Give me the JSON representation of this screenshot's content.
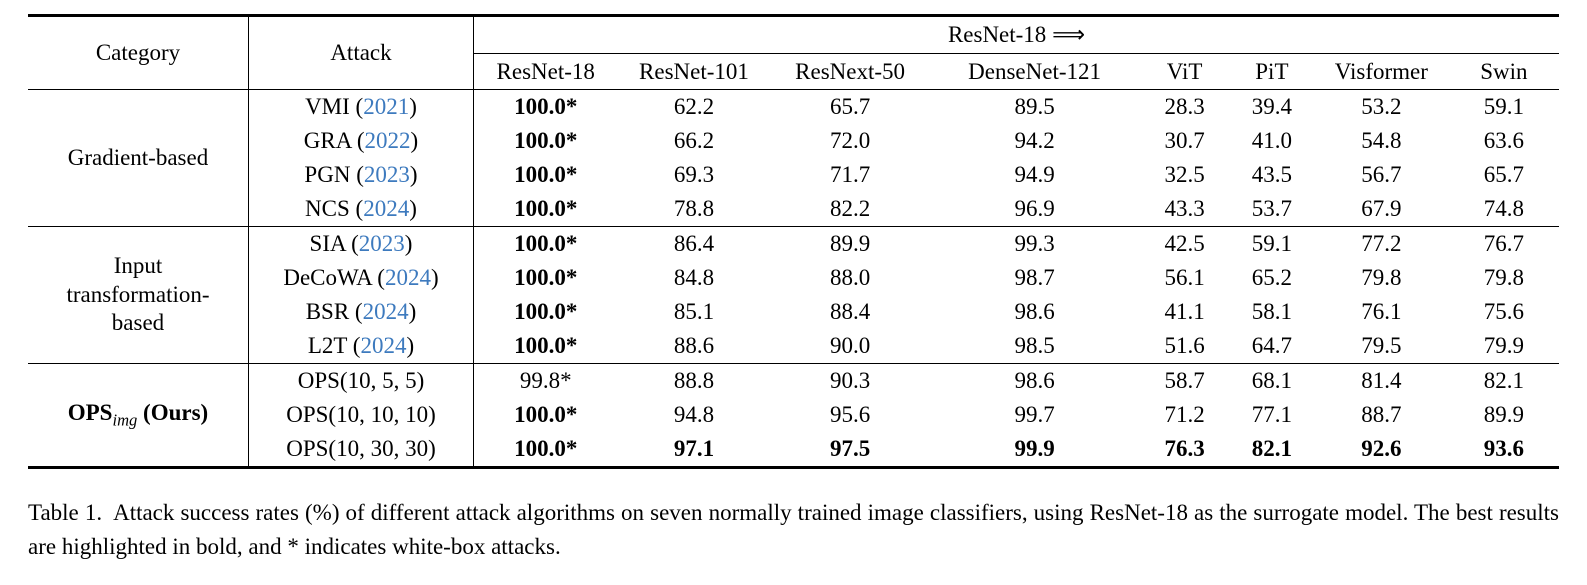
{
  "colors": {
    "text": "#000000",
    "background": "#ffffff",
    "citation_link": "#3d7abe"
  },
  "table": {
    "col_category": "Category",
    "col_attack": "Attack",
    "surrogate": {
      "label": "ResNet-18",
      "arrow": "⟹"
    },
    "model_columns": [
      "ResNet-18",
      "ResNet-101",
      "ResNext-50",
      "DenseNet-121",
      "ViT",
      "PiT",
      "Visformer",
      "Swin"
    ],
    "groups": [
      {
        "category_lines": [
          "Gradient-based"
        ],
        "rows": [
          {
            "attack": "VMI",
            "year": "2021",
            "values": [
              "100.0*",
              "62.2",
              "65.7",
              "89.5",
              "28.3",
              "39.4",
              "53.2",
              "59.1"
            ],
            "bold": [
              0
            ]
          },
          {
            "attack": "GRA",
            "year": "2022",
            "values": [
              "100.0*",
              "66.2",
              "72.0",
              "94.2",
              "30.7",
              "41.0",
              "54.8",
              "63.6"
            ],
            "bold": [
              0
            ]
          },
          {
            "attack": "PGN",
            "year": "2023",
            "values": [
              "100.0*",
              "69.3",
              "71.7",
              "94.9",
              "32.5",
              "43.5",
              "56.7",
              "65.7"
            ],
            "bold": [
              0
            ]
          },
          {
            "attack": "NCS",
            "year": "2024",
            "values": [
              "100.0*",
              "78.8",
              "82.2",
              "96.9",
              "43.3",
              "53.7",
              "67.9",
              "74.8"
            ],
            "bold": [
              0
            ]
          }
        ]
      },
      {
        "category_lines": [
          "Input",
          "transformation-",
          "based"
        ],
        "rows": [
          {
            "attack": "SIA",
            "year": "2023",
            "values": [
              "100.0*",
              "86.4",
              "89.9",
              "99.3",
              "42.5",
              "59.1",
              "77.2",
              "76.7"
            ],
            "bold": [
              0
            ]
          },
          {
            "attack": "DeCoWA",
            "year": "2024",
            "values": [
              "100.0*",
              "84.8",
              "88.0",
              "98.7",
              "56.1",
              "65.2",
              "79.8",
              "79.8"
            ],
            "bold": [
              0
            ]
          },
          {
            "attack": "BSR",
            "year": "2024",
            "values": [
              "100.0*",
              "85.1",
              "88.4",
              "98.6",
              "41.1",
              "58.1",
              "76.1",
              "75.6"
            ],
            "bold": [
              0
            ]
          },
          {
            "attack": "L2T",
            "year": "2024",
            "values": [
              "100.0*",
              "88.6",
              "90.0",
              "98.5",
              "51.6",
              "64.7",
              "79.5",
              "79.9"
            ],
            "bold": [
              0
            ]
          }
        ]
      },
      {
        "category_rich": {
          "prefix": "OPS",
          "subscript": "img",
          "suffix": "(Ours)"
        },
        "rows": [
          {
            "attack": "OPS(10, 5, 5)",
            "year": null,
            "values": [
              "99.8*",
              "88.8",
              "90.3",
              "98.6",
              "58.7",
              "68.1",
              "81.4",
              "82.1"
            ],
            "bold": []
          },
          {
            "attack": "OPS(10, 10, 10)",
            "year": null,
            "values": [
              "100.0*",
              "94.8",
              "95.6",
              "99.7",
              "71.2",
              "77.1",
              "88.7",
              "89.9"
            ],
            "bold": [
              0
            ]
          },
          {
            "attack": "OPS(10, 30, 30)",
            "year": null,
            "values": [
              "100.0*",
              "97.1",
              "97.5",
              "99.9",
              "76.3",
              "82.1",
              "92.6",
              "93.6"
            ],
            "bold": [
              0,
              1,
              2,
              3,
              4,
              5,
              6,
              7
            ]
          }
        ]
      }
    ]
  },
  "caption": {
    "label": "Table 1.",
    "text": "Attack success rates (%) of different attack algorithms on seven normally trained image classifiers, using ResNet-18 as the surrogate model. The best results are highlighted in bold, and * indicates white-box attacks."
  }
}
